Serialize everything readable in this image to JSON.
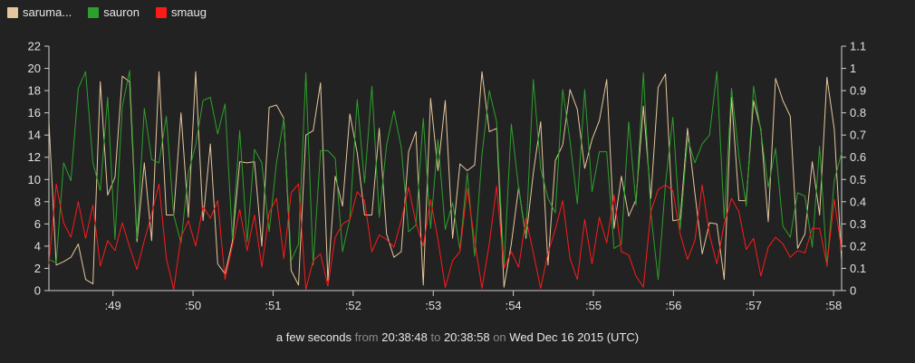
{
  "legend": {
    "items": [
      {
        "label": "saruma...",
        "color": "#e6c79c"
      },
      {
        "label": "sauron",
        "color": "#2ca02c"
      },
      {
        "label": "smaug",
        "color": "#ff1a1a"
      }
    ]
  },
  "footer": {
    "duration": "a few seconds",
    "from_word": "from",
    "start": "20:38:48",
    "to_word": "to",
    "end": "20:38:58",
    "on_word": "on",
    "date": "Wed Dec 16 2015 (UTC)"
  },
  "chart_data": {
    "type": "line",
    "title": "",
    "xlabel": "",
    "ylabel": "",
    "x_ticks": [
      ":49",
      ":50",
      ":51",
      ":52",
      ":53",
      ":54",
      ":55",
      ":56",
      ":57",
      ":58"
    ],
    "x_tick_positions": [
      49,
      50,
      51,
      52,
      53,
      54,
      55,
      56,
      57,
      58
    ],
    "xlim": [
      48.2,
      58.1
    ],
    "y_left": {
      "ticks": [
        "0",
        "2",
        "4",
        "6",
        "8",
        "10",
        "12",
        "14",
        "16",
        "18",
        "20",
        "22"
      ],
      "lim": [
        0,
        22
      ]
    },
    "y_right": {
      "ticks": [
        "0",
        "0.1",
        "0.2",
        "0.3",
        "0.4",
        "0.5",
        "0.6",
        "0.7",
        "0.8",
        "0.9",
        "1",
        "1.1"
      ],
      "lim": [
        0,
        1.1
      ]
    },
    "grid": false,
    "series": [
      {
        "name": "saruma...",
        "color": "#e6c79c",
        "axis": "left",
        "values": [
          15.2,
          2.3,
          2.6,
          3.0,
          4.2,
          1.0,
          0.6,
          18.8,
          8.6,
          10.2,
          19.3,
          18.8,
          4.4,
          11.5,
          4.5,
          19.7,
          6.8,
          6.8,
          16.0,
          6.6,
          19.7,
          6.3,
          13.2,
          2.4,
          1.5,
          4.4,
          11.6,
          11.5,
          11.6,
          4.0,
          16.5,
          16.7,
          15.5,
          1.8,
          0.5,
          14.0,
          14.4,
          18.7,
          0.9,
          10.3,
          7.6,
          15.9,
          12.4,
          6.8,
          6.8,
          14.6,
          5.1,
          3.0,
          3.5,
          12.5,
          14.3,
          0.5,
          17.3,
          10.8,
          17.1,
          4.7,
          11.4,
          10.8,
          11.3,
          19.7,
          14.3,
          14.6,
          0.3,
          4.2,
          9.3,
          4.7,
          10.6,
          15.2,
          2.3,
          11.7,
          13.1,
          18.1,
          16.3,
          11.0,
          13.6,
          15.3,
          19.0,
          5.6,
          10.3,
          6.7,
          8.2,
          16.6,
          8.3,
          18.3,
          19.5,
          6.3,
          6.4,
          14.6,
          8.8,
          3.3,
          6.1,
          6.0,
          1.0,
          17.4,
          8.1,
          8.1,
          17.1,
          14.5,
          6.2,
          19.1,
          17.1,
          15.7,
          3.8,
          5.1,
          11.6,
          6.8,
          19.2,
          14.5,
          2.7
        ]
      },
      {
        "name": "sauron",
        "color": "#2ca02c",
        "axis": "left",
        "values": [
          2.8,
          2.5,
          11.5,
          9.9,
          18.2,
          19.7,
          11.5,
          9.0,
          17.4,
          4.6,
          16.6,
          19.8,
          4.7,
          16.4,
          11.8,
          11.5,
          15.7,
          6.8,
          4.3,
          10.6,
          13.1,
          17.1,
          17.4,
          14.1,
          16.8,
          4.7,
          14.4,
          4.4,
          12.7,
          11.5,
          5.3,
          11.5,
          15.5,
          2.7,
          4.2,
          19.6,
          2.3,
          12.6,
          12.6,
          11.9,
          3.5,
          6.5,
          17.2,
          9.7,
          18.4,
          6.6,
          13.1,
          16.2,
          12.9,
          5.3,
          5.9,
          15.5,
          5.6,
          13.6,
          5.5,
          7.9,
          3.7,
          10.6,
          3.1,
          12.2,
          18.0,
          15.2,
          2.0,
          15.0,
          9.2,
          4.9,
          19.0,
          11.0,
          8.3,
          7.0,
          18.1,
          13.5,
          7.8,
          18.1,
          8.9,
          12.5,
          12.5,
          3.8,
          4.2,
          15.2,
          7.7,
          19.6,
          7.0,
          1.0,
          9.6,
          15.6,
          5.5,
          13.7,
          11.5,
          13.2,
          14.0,
          19.7,
          6.5,
          18.2,
          12.1,
          7.6,
          18.4,
          14.3,
          9.3,
          12.8,
          5.8,
          4.8,
          8.8,
          8.5,
          3.9,
          13.0,
          2.2,
          9.9,
          12.4
        ]
      },
      {
        "name": "smaug",
        "color": "#ff1a1a",
        "axis": "left",
        "values": [
          2.4,
          9.6,
          6.1,
          4.8,
          8.0,
          4.7,
          7.7,
          2.2,
          4.5,
          3.6,
          6.1,
          3.9,
          1.9,
          4.5,
          6.9,
          9.6,
          2.9,
          0.1,
          4.8,
          6.3,
          4.0,
          7.6,
          6.5,
          8.1,
          1.0,
          4.0,
          7.3,
          3.6,
          6.8,
          2.1,
          7.0,
          8.3,
          2.9,
          8.8,
          9.6,
          0.1,
          2.7,
          3.3,
          0.4,
          4.8,
          6.0,
          6.4,
          8.9,
          8.1,
          3.5,
          5.0,
          4.6,
          3.9,
          6.3,
          9.3,
          6.1,
          4.0,
          8.2,
          4.6,
          0.3,
          2.7,
          3.5,
          9.2,
          4.5,
          0.2,
          4.2,
          9.4,
          2.0,
          3.5,
          2.1,
          6.5,
          3.4,
          0.2,
          3.4,
          5.5,
          8.1,
          2.9,
          1.0,
          6.4,
          2.4,
          6.6,
          4.3,
          8.6,
          3.5,
          3.2,
          1.3,
          0.3,
          7.1,
          9.1,
          9.5,
          9.0,
          5.1,
          2.8,
          4.5,
          9.5,
          5.0,
          2.4,
          6.0,
          8.3,
          7.1,
          3.7,
          4.7,
          1.3,
          3.9,
          4.8,
          4.2,
          3.0,
          3.6,
          3.4,
          5.6,
          5.6,
          2.3,
          8.2,
          3.6
        ]
      }
    ]
  }
}
